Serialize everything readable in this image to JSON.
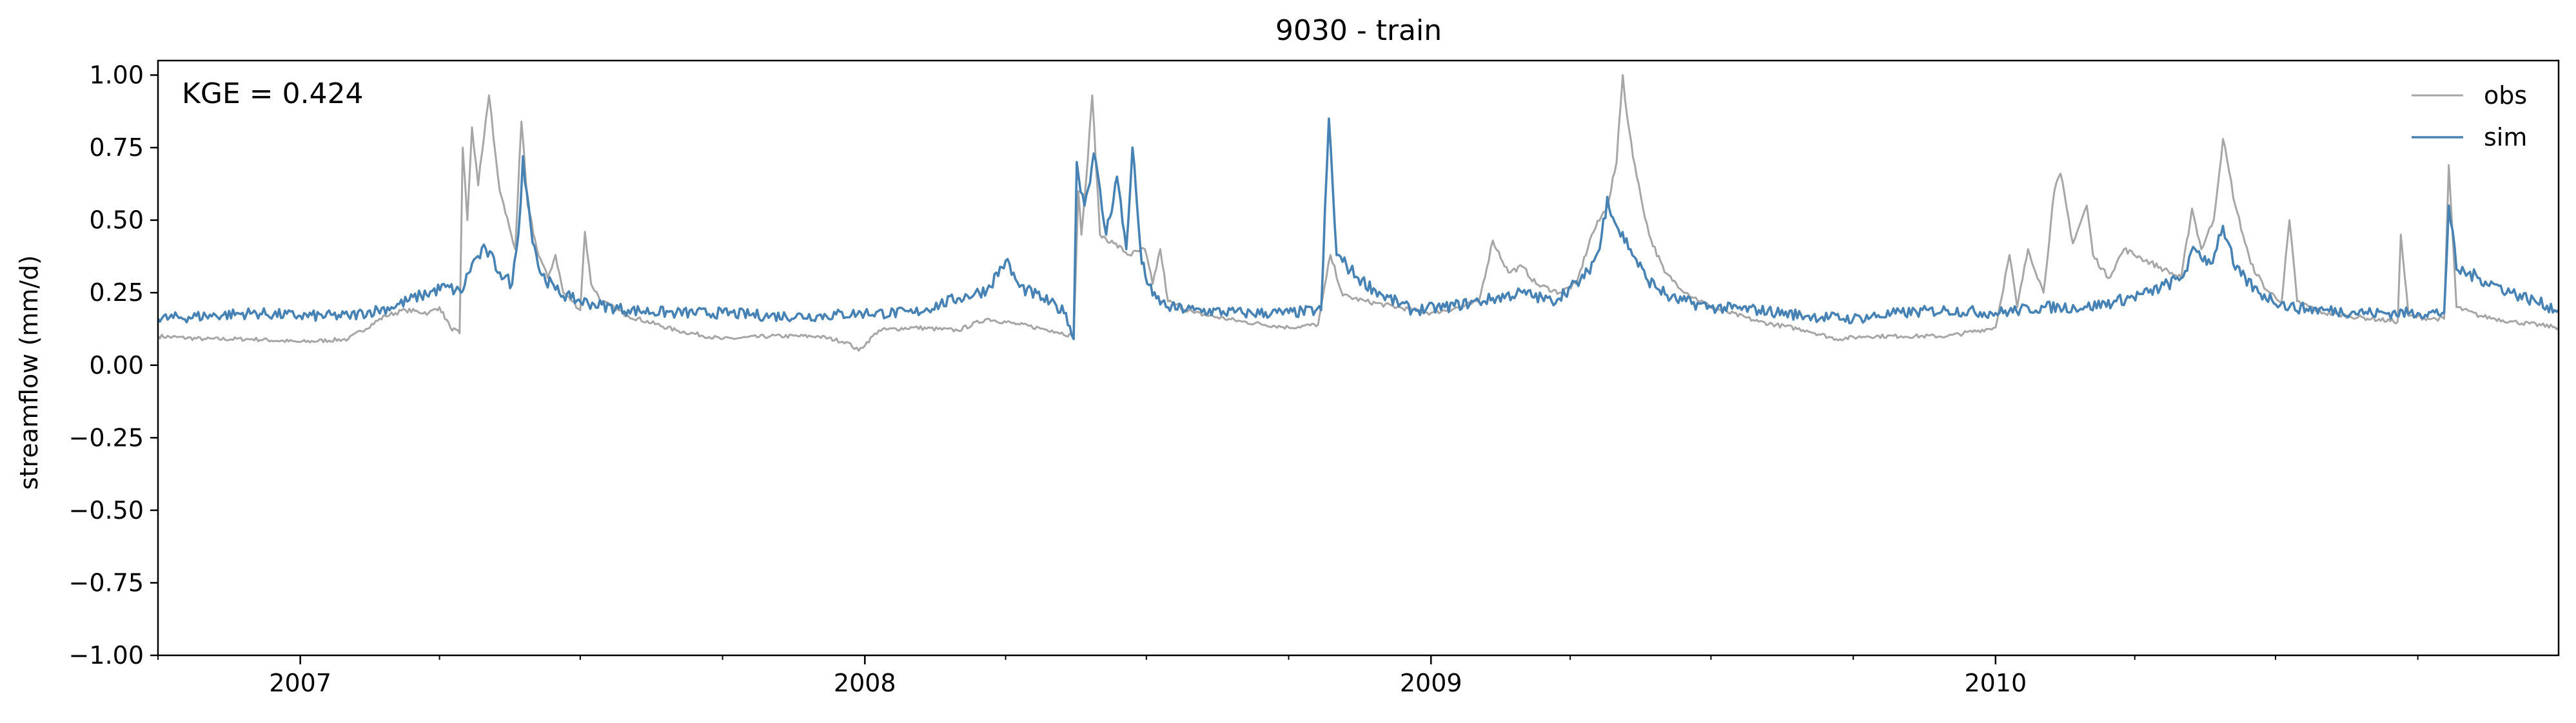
{
  "chart_data": {
    "type": "line",
    "title": "9030 - train",
    "xlabel": "",
    "ylabel": "streamflow (mm/d)",
    "x_range": [
      "2006-10-01",
      "2010-12-31"
    ],
    "ylim": [
      -1.0,
      1.05
    ],
    "grid": false,
    "legend_position": "top-right",
    "annotation": "KGE = 0.424",
    "x_ticks": [
      {
        "date": "2007-01-01",
        "label": "2007"
      },
      {
        "date": "2008-01-01",
        "label": "2008"
      },
      {
        "date": "2009-01-01",
        "label": "2009"
      },
      {
        "date": "2010-01-01",
        "label": "2010"
      }
    ],
    "y_ticks": [
      {
        "value": 1.0,
        "label": "1.00"
      },
      {
        "value": 0.75,
        "label": "0.75"
      },
      {
        "value": 0.5,
        "label": "0.50"
      },
      {
        "value": 0.25,
        "label": "0.25"
      },
      {
        "value": 0.0,
        "label": "0.00"
      },
      {
        "value": -0.25,
        "label": "−0.25"
      },
      {
        "value": -0.5,
        "label": "−0.50"
      },
      {
        "value": -0.75,
        "label": "−0.75"
      },
      {
        "value": -1.0,
        "label": "−1.00"
      }
    ],
    "series": [
      {
        "name": "obs",
        "color": "#a6a6a6",
        "points": [
          [
            "2006-10-01",
            0.1
          ],
          [
            "2006-11-01",
            0.09
          ],
          [
            "2006-12-01",
            0.09
          ],
          [
            "2007-01-01",
            0.08
          ],
          [
            "2007-02-01",
            0.09
          ],
          [
            "2007-02-25",
            0.17
          ],
          [
            "2007-03-10",
            0.19
          ],
          [
            "2007-03-25",
            0.18
          ],
          [
            "2007-04-01",
            0.2
          ],
          [
            "2007-04-08",
            0.13
          ],
          [
            "2007-04-14",
            0.11
          ],
          [
            "2007-04-16",
            0.75
          ],
          [
            "2007-04-19",
            0.5
          ],
          [
            "2007-04-22",
            0.82
          ],
          [
            "2007-04-26",
            0.62
          ],
          [
            "2007-05-01",
            0.85
          ],
          [
            "2007-05-03",
            0.93
          ],
          [
            "2007-05-06",
            0.78
          ],
          [
            "2007-05-10",
            0.6
          ],
          [
            "2007-05-16",
            0.48
          ],
          [
            "2007-05-20",
            0.4
          ],
          [
            "2007-05-24",
            0.84
          ],
          [
            "2007-05-28",
            0.55
          ],
          [
            "2007-06-03",
            0.4
          ],
          [
            "2007-06-10",
            0.3
          ],
          [
            "2007-06-15",
            0.38
          ],
          [
            "2007-06-20",
            0.25
          ],
          [
            "2007-06-26",
            0.22
          ],
          [
            "2007-07-01",
            0.19
          ],
          [
            "2007-07-04",
            0.46
          ],
          [
            "2007-07-08",
            0.28
          ],
          [
            "2007-07-15",
            0.22
          ],
          [
            "2007-08-01",
            0.17
          ],
          [
            "2007-09-01",
            0.12
          ],
          [
            "2007-10-01",
            0.09
          ],
          [
            "2007-11-01",
            0.1
          ],
          [
            "2007-12-01",
            0.1
          ],
          [
            "2007-12-20",
            0.08
          ],
          [
            "2007-12-28",
            0.05
          ],
          [
            "2008-01-10",
            0.12
          ],
          [
            "2008-02-01",
            0.13
          ],
          [
            "2008-03-01",
            0.12
          ],
          [
            "2008-03-20",
            0.16
          ],
          [
            "2008-04-10",
            0.14
          ],
          [
            "2008-05-01",
            0.12
          ],
          [
            "2008-05-15",
            0.1
          ],
          [
            "2008-05-18",
            0.6
          ],
          [
            "2008-05-20",
            0.45
          ],
          [
            "2008-05-24",
            0.7
          ],
          [
            "2008-05-27",
            0.93
          ],
          [
            "2008-06-01",
            0.45
          ],
          [
            "2008-06-10",
            0.42
          ],
          [
            "2008-06-20",
            0.38
          ],
          [
            "2008-06-30",
            0.4
          ],
          [
            "2008-07-05",
            0.28
          ],
          [
            "2008-07-10",
            0.4
          ],
          [
            "2008-07-15",
            0.22
          ],
          [
            "2008-08-01",
            0.18
          ],
          [
            "2008-09-01",
            0.15
          ],
          [
            "2008-10-01",
            0.13
          ],
          [
            "2008-10-20",
            0.14
          ],
          [
            "2008-10-28",
            0.38
          ],
          [
            "2008-11-05",
            0.24
          ],
          [
            "2008-11-20",
            0.22
          ],
          [
            "2008-12-10",
            0.2
          ],
          [
            "2009-01-01",
            0.18
          ],
          [
            "2009-01-20",
            0.2
          ],
          [
            "2009-02-01",
            0.22
          ],
          [
            "2009-02-10",
            0.43
          ],
          [
            "2009-02-20",
            0.32
          ],
          [
            "2009-03-01",
            0.34
          ],
          [
            "2009-03-10",
            0.28
          ],
          [
            "2009-03-25",
            0.25
          ],
          [
            "2009-04-05",
            0.28
          ],
          [
            "2009-04-15",
            0.45
          ],
          [
            "2009-04-25",
            0.55
          ],
          [
            "2009-05-01",
            0.7
          ],
          [
            "2009-05-05",
            1.0
          ],
          [
            "2009-05-08",
            0.85
          ],
          [
            "2009-05-14",
            0.65
          ],
          [
            "2009-05-22",
            0.45
          ],
          [
            "2009-06-01",
            0.32
          ],
          [
            "2009-06-15",
            0.25
          ],
          [
            "2009-07-01",
            0.2
          ],
          [
            "2009-08-01",
            0.15
          ],
          [
            "2009-09-01",
            0.12
          ],
          [
            "2009-09-20",
            0.09
          ],
          [
            "2009-10-10",
            0.1
          ],
          [
            "2009-11-01",
            0.1
          ],
          [
            "2009-12-01",
            0.1
          ],
          [
            "2010-01-01",
            0.13
          ],
          [
            "2010-01-10",
            0.38
          ],
          [
            "2010-01-15",
            0.2
          ],
          [
            "2010-01-22",
            0.4
          ],
          [
            "2010-02-01",
            0.25
          ],
          [
            "2010-02-08",
            0.6
          ],
          [
            "2010-02-12",
            0.66
          ],
          [
            "2010-02-20",
            0.42
          ],
          [
            "2010-03-01",
            0.55
          ],
          [
            "2010-03-05",
            0.38
          ],
          [
            "2010-03-15",
            0.3
          ],
          [
            "2010-03-25",
            0.4
          ],
          [
            "2010-04-05",
            0.37
          ],
          [
            "2010-04-20",
            0.33
          ],
          [
            "2010-05-01",
            0.3
          ],
          [
            "2010-05-08",
            0.54
          ],
          [
            "2010-05-14",
            0.4
          ],
          [
            "2010-05-22",
            0.5
          ],
          [
            "2010-05-28",
            0.78
          ],
          [
            "2010-06-05",
            0.55
          ],
          [
            "2010-06-15",
            0.35
          ],
          [
            "2010-06-25",
            0.26
          ],
          [
            "2010-07-05",
            0.22
          ],
          [
            "2010-07-10",
            0.5
          ],
          [
            "2010-07-15",
            0.22
          ],
          [
            "2010-08-01",
            0.18
          ],
          [
            "2010-09-01",
            0.16
          ],
          [
            "2010-09-18",
            0.15
          ],
          [
            "2010-09-20",
            0.45
          ],
          [
            "2010-09-25",
            0.17
          ],
          [
            "2010-10-10",
            0.16
          ],
          [
            "2010-10-18",
            0.16
          ],
          [
            "2010-10-21",
            0.69
          ],
          [
            "2010-10-26",
            0.2
          ],
          [
            "2010-11-10",
            0.17
          ],
          [
            "2010-12-01",
            0.15
          ],
          [
            "2010-12-31",
            0.13
          ]
        ]
      },
      {
        "name": "sim",
        "color": "#4682b4",
        "points": [
          [
            "2006-10-01",
            0.16
          ],
          [
            "2006-11-01",
            0.17
          ],
          [
            "2006-12-01",
            0.18
          ],
          [
            "2007-01-01",
            0.17
          ],
          [
            "2007-02-01",
            0.17
          ],
          [
            "2007-03-01",
            0.2
          ],
          [
            "2007-03-20",
            0.24
          ],
          [
            "2007-04-05",
            0.27
          ],
          [
            "2007-04-15",
            0.25
          ],
          [
            "2007-04-22",
            0.35
          ],
          [
            "2007-05-01",
            0.4
          ],
          [
            "2007-05-10",
            0.32
          ],
          [
            "2007-05-18",
            0.28
          ],
          [
            "2007-05-22",
            0.45
          ],
          [
            "2007-05-25",
            0.72
          ],
          [
            "2007-05-30",
            0.48
          ],
          [
            "2007-06-05",
            0.32
          ],
          [
            "2007-06-15",
            0.26
          ],
          [
            "2007-06-25",
            0.23
          ],
          [
            "2007-07-10",
            0.21
          ],
          [
            "2007-08-01",
            0.19
          ],
          [
            "2007-09-01",
            0.18
          ],
          [
            "2007-10-01",
            0.18
          ],
          [
            "2007-11-01",
            0.17
          ],
          [
            "2007-12-01",
            0.17
          ],
          [
            "2008-01-01",
            0.18
          ],
          [
            "2008-02-01",
            0.18
          ],
          [
            "2008-03-01",
            0.23
          ],
          [
            "2008-03-20",
            0.26
          ],
          [
            "2008-04-01",
            0.36
          ],
          [
            "2008-04-10",
            0.27
          ],
          [
            "2008-04-25",
            0.23
          ],
          [
            "2008-05-10",
            0.18
          ],
          [
            "2008-05-15",
            0.09
          ],
          [
            "2008-05-17",
            0.7
          ],
          [
            "2008-05-22",
            0.55
          ],
          [
            "2008-05-28",
            0.73
          ],
          [
            "2008-06-05",
            0.45
          ],
          [
            "2008-06-12",
            0.65
          ],
          [
            "2008-06-18",
            0.4
          ],
          [
            "2008-06-22",
            0.75
          ],
          [
            "2008-06-28",
            0.35
          ],
          [
            "2008-07-05",
            0.24
          ],
          [
            "2008-07-15",
            0.2
          ],
          [
            "2008-08-01",
            0.19
          ],
          [
            "2008-09-01",
            0.18
          ],
          [
            "2008-10-01",
            0.18
          ],
          [
            "2008-10-22",
            0.19
          ],
          [
            "2008-10-27",
            0.85
          ],
          [
            "2008-11-01",
            0.38
          ],
          [
            "2008-11-15",
            0.3
          ],
          [
            "2008-12-01",
            0.24
          ],
          [
            "2008-12-20",
            0.19
          ],
          [
            "2009-01-10",
            0.2
          ],
          [
            "2009-02-01",
            0.22
          ],
          [
            "2009-03-01",
            0.25
          ],
          [
            "2009-03-20",
            0.22
          ],
          [
            "2009-04-10",
            0.3
          ],
          [
            "2009-04-20",
            0.4
          ],
          [
            "2009-04-25",
            0.58
          ],
          [
            "2009-05-01",
            0.48
          ],
          [
            "2009-05-10",
            0.4
          ],
          [
            "2009-05-20",
            0.3
          ],
          [
            "2009-06-05",
            0.23
          ],
          [
            "2009-07-01",
            0.2
          ],
          [
            "2009-08-01",
            0.19
          ],
          [
            "2009-09-01",
            0.17
          ],
          [
            "2009-10-01",
            0.16
          ],
          [
            "2009-11-01",
            0.18
          ],
          [
            "2009-12-01",
            0.19
          ],
          [
            "2010-01-01",
            0.18
          ],
          [
            "2010-02-01",
            0.2
          ],
          [
            "2010-03-01",
            0.2
          ],
          [
            "2010-03-20",
            0.22
          ],
          [
            "2010-04-10",
            0.25
          ],
          [
            "2010-05-01",
            0.3
          ],
          [
            "2010-05-10",
            0.4
          ],
          [
            "2010-05-20",
            0.35
          ],
          [
            "2010-05-28",
            0.48
          ],
          [
            "2010-06-05",
            0.33
          ],
          [
            "2010-06-20",
            0.25
          ],
          [
            "2010-07-10",
            0.2
          ],
          [
            "2010-08-01",
            0.19
          ],
          [
            "2010-09-01",
            0.18
          ],
          [
            "2010-10-01",
            0.18
          ],
          [
            "2010-10-18",
            0.18
          ],
          [
            "2010-10-21",
            0.55
          ],
          [
            "2010-10-26",
            0.33
          ],
          [
            "2010-11-10",
            0.3
          ],
          [
            "2010-12-01",
            0.25
          ],
          [
            "2010-12-31",
            0.19
          ]
        ]
      }
    ]
  }
}
